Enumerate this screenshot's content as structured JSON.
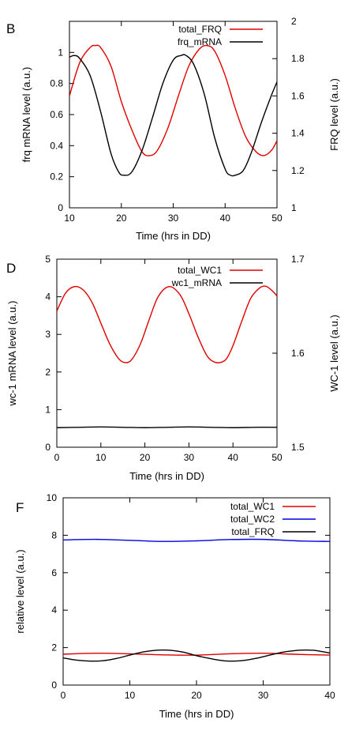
{
  "chart_data": [
    {
      "type": "line",
      "panel_label": "B",
      "xlabel": "Time (hrs in DD)",
      "ylabel": "frq mRNA level (a.u.)",
      "y2label": "FRQ level (a.u.)",
      "xlim": [
        10,
        50
      ],
      "ylim": [
        0,
        1.2
      ],
      "y2lim": [
        1,
        2
      ],
      "xticks": [
        "10",
        "20",
        "30",
        "40",
        "50"
      ],
      "yticks": [
        "0",
        "0.2",
        "0.4",
        "0.6",
        "0.8",
        "1"
      ],
      "y2ticks": [
        "1",
        "1.2",
        "1.4",
        "1.6",
        "1.8",
        "2"
      ],
      "legend_position": "top-right",
      "grid": false,
      "series": [
        {
          "name": "total_FRQ",
          "color": "#e00000",
          "axis": "right",
          "x": [
            10,
            12,
            14,
            15,
            16,
            18,
            20,
            22,
            24,
            25.5,
            27,
            29,
            31,
            33,
            35,
            36.5,
            38,
            40,
            42,
            44,
            46,
            47.5,
            49,
            50
          ],
          "y": [
            1.6,
            1.78,
            1.86,
            1.87,
            1.86,
            1.76,
            1.57,
            1.42,
            1.3,
            1.28,
            1.31,
            1.43,
            1.6,
            1.76,
            1.85,
            1.87,
            1.84,
            1.71,
            1.53,
            1.38,
            1.3,
            1.28,
            1.31,
            1.36
          ]
        },
        {
          "name": "frq_mRNA",
          "color": "#000000",
          "axis": "left",
          "x": [
            10,
            11,
            12,
            14,
            16,
            18,
            19.5,
            20.5,
            22,
            24,
            26,
            28,
            30,
            31.5,
            32.5,
            34,
            36,
            38,
            40,
            41,
            42,
            43.5,
            45,
            47,
            49,
            50
          ],
          "y": [
            0.97,
            0.98,
            0.96,
            0.85,
            0.62,
            0.35,
            0.23,
            0.21,
            0.23,
            0.37,
            0.58,
            0.8,
            0.95,
            0.98,
            0.98,
            0.92,
            0.73,
            0.45,
            0.25,
            0.21,
            0.21,
            0.24,
            0.35,
            0.55,
            0.73,
            0.81
          ]
        }
      ]
    },
    {
      "type": "line",
      "panel_label": "D",
      "xlabel": "Time (hrs in DD)",
      "ylabel": "wc-1 mRNA level (a.u.)",
      "y2label": "WC-1 level (a.u.)",
      "xlim": [
        0,
        50
      ],
      "ylim": [
        0,
        5
      ],
      "y2lim": [
        1.5,
        1.7
      ],
      "xticks": [
        "0",
        "10",
        "20",
        "30",
        "40",
        "50"
      ],
      "yticks": [
        "0",
        "1",
        "2",
        "3",
        "4",
        "5"
      ],
      "y2ticks": [
        "1.5",
        "1.6",
        "1.7"
      ],
      "legend_position": "top-right",
      "grid": false,
      "series": [
        {
          "name": "total_WC1",
          "color": "#e00000",
          "axis": "left",
          "x": [
            0,
            2,
            4,
            6,
            8,
            10,
            12,
            14,
            15.5,
            17,
            19,
            21,
            23,
            25.5,
            28,
            30,
            32,
            34,
            35.5,
            37,
            38.5,
            40,
            42,
            44,
            46,
            47.5,
            49,
            50
          ],
          "y": [
            3.62,
            4.1,
            4.27,
            4.18,
            3.85,
            3.3,
            2.75,
            2.36,
            2.25,
            2.33,
            2.75,
            3.4,
            4.0,
            4.27,
            4.05,
            3.55,
            2.95,
            2.45,
            2.28,
            2.25,
            2.35,
            2.7,
            3.35,
            3.95,
            4.23,
            4.28,
            4.15,
            4.02
          ]
        },
        {
          "name": "wc1_mRNA",
          "color": "#000000",
          "axis": "left",
          "x": [
            0,
            5,
            10,
            15,
            20,
            25,
            30,
            35,
            40,
            45,
            50
          ],
          "y": [
            0.52,
            0.53,
            0.54,
            0.53,
            0.52,
            0.53,
            0.54,
            0.53,
            0.52,
            0.53,
            0.53
          ]
        }
      ]
    },
    {
      "type": "line",
      "panel_label": "F",
      "xlabel": "Time (hrs in DD)",
      "ylabel": "relative level (a.u.)",
      "xlim": [
        0,
        40
      ],
      "ylim": [
        0,
        10
      ],
      "xticks": [
        "0",
        "10",
        "20",
        "30",
        "40"
      ],
      "yticks": [
        "0",
        "2",
        "4",
        "6",
        "8",
        "10"
      ],
      "legend_position": "top-right",
      "grid": false,
      "series": [
        {
          "name": "total_WC1",
          "color": "#e00000",
          "x": [
            0,
            5,
            10,
            15,
            20,
            25,
            30,
            35,
            40
          ],
          "y": [
            1.65,
            1.7,
            1.67,
            1.61,
            1.6,
            1.67,
            1.7,
            1.64,
            1.6
          ]
        },
        {
          "name": "total_WC2",
          "color": "#0000e0",
          "x": [
            0,
            5,
            10,
            15,
            20,
            25,
            30,
            35,
            40
          ],
          "y": [
            7.75,
            7.78,
            7.73,
            7.67,
            7.7,
            7.77,
            7.78,
            7.7,
            7.67
          ]
        },
        {
          "name": "total_FRQ",
          "color": "#000000",
          "x": [
            0,
            2,
            4,
            6,
            8,
            10,
            12,
            14,
            15,
            16,
            18,
            20,
            22,
            24,
            25.5,
            27,
            29,
            31,
            33,
            35,
            36.5,
            38,
            40
          ],
          "y": [
            1.45,
            1.33,
            1.28,
            1.3,
            1.42,
            1.6,
            1.77,
            1.86,
            1.87,
            1.86,
            1.76,
            1.57,
            1.42,
            1.3,
            1.28,
            1.31,
            1.43,
            1.6,
            1.76,
            1.85,
            1.87,
            1.84,
            1.71
          ]
        }
      ]
    }
  ]
}
